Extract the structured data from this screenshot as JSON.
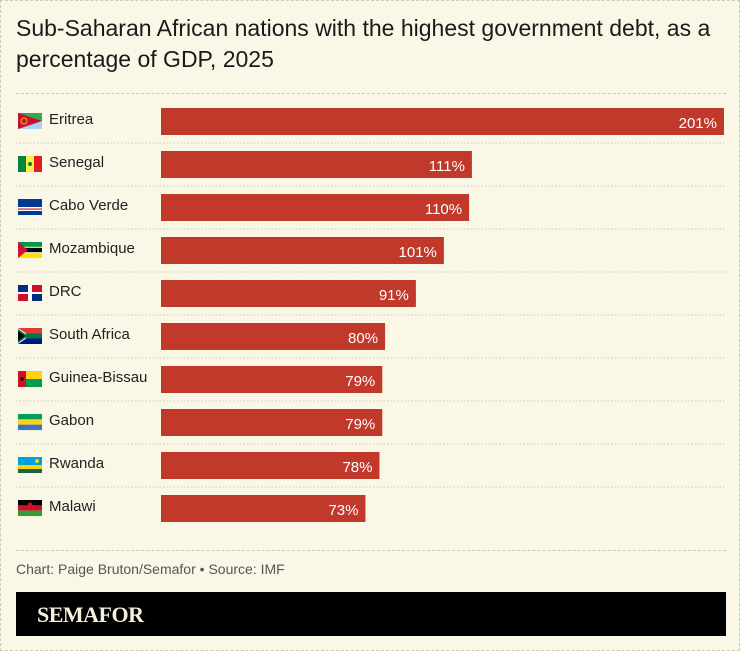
{
  "title": "Sub-Saharan African nations with the highest government debt, as a percentage of GDP, 2025",
  "credit": "Chart: Paige Bruton/Semafor • Source: IMF",
  "brand": "SEMAFOR",
  "colors": {
    "bar": "#c0392b",
    "background": "#faf7e6",
    "label_inside": "#ffffff"
  },
  "chart_data": {
    "type": "bar",
    "orientation": "horizontal",
    "categories": [
      "Eritrea",
      "Senegal",
      "Cabo Verde",
      "Mozambique",
      "DRC",
      "South Africa",
      "Guinea-Bissau",
      "Gabon",
      "Rwanda",
      "Malawi"
    ],
    "values": [
      201,
      111,
      110,
      101,
      91,
      80,
      79,
      79,
      78,
      73
    ],
    "value_labels": [
      "201%",
      "111%",
      "110%",
      "101%",
      "91%",
      "80%",
      "79%",
      "79%",
      "78%",
      "73%"
    ],
    "unit": "%",
    "xlim": [
      0,
      201
    ],
    "grid": false,
    "flags": [
      "eritrea-flag",
      "senegal-flag",
      "cabo-verde-flag",
      "mozambique-flag",
      "drc-flag",
      "south-africa-flag",
      "guinea-bissau-flag",
      "gabon-flag",
      "rwanda-flag",
      "malawi-flag"
    ]
  }
}
